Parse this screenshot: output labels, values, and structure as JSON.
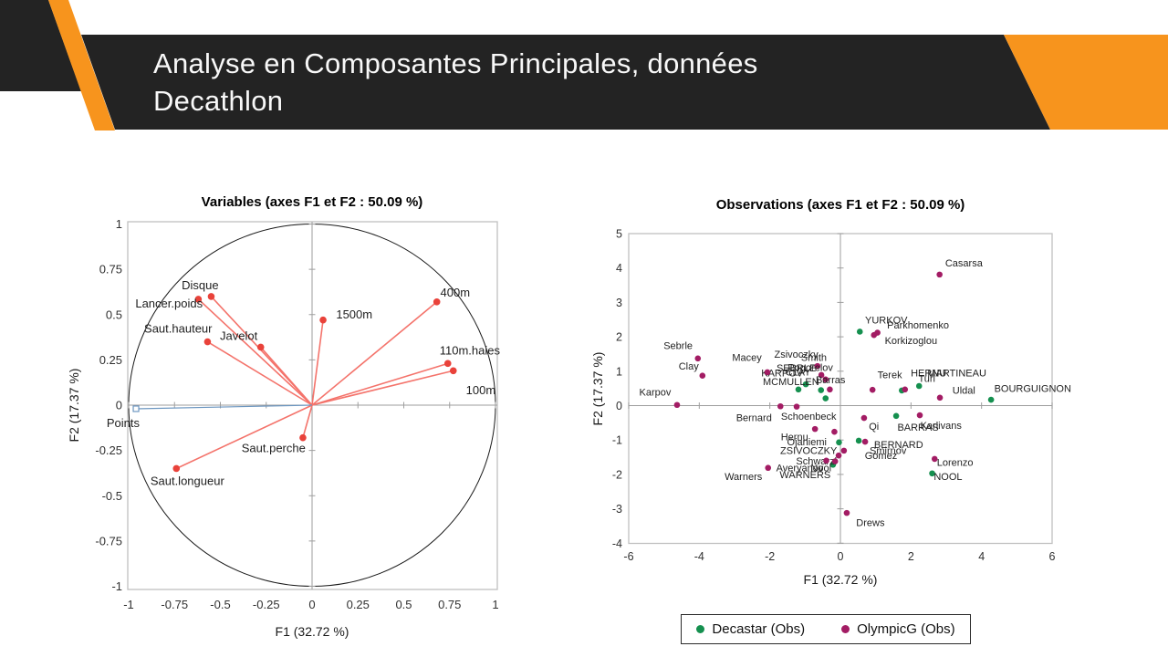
{
  "slide": {
    "title_line1": "Analyse en Composantes Principales, données",
    "title_line2": "Decathlon"
  },
  "colors": {
    "banner_dark": "#232323",
    "accent_orange": "#F7941D",
    "title_text": "#F8F8F8",
    "plot_border": "#C0C0C0",
    "axis_gray": "#9E9E9E",
    "circle_black": "#1A1A1A",
    "vector_red_line": "#F4736B",
    "vector_red_dot": "#E9423A",
    "vector_blue": "#6C96C0",
    "decastar_green": "#15904F",
    "olympic_magenta": "#A31C64"
  },
  "chart_data": [
    {
      "type": "scatter",
      "subtype": "pca-correlation-circle",
      "title": "Variables (axes F1 et F2 : 50.09 %)",
      "xlabel": "F1 (32.72 %)",
      "ylabel": "F2 (17.37 %)",
      "xlim": [
        -1,
        1
      ],
      "ylim": [
        -1,
        1
      ],
      "unit_circle": true,
      "grid": false,
      "xticks": [
        {
          "v": -1,
          "t": "-1"
        },
        {
          "v": -0.75,
          "t": "-0.75"
        },
        {
          "v": -0.5,
          "t": "-0.5"
        },
        {
          "v": -0.25,
          "t": "-0.25"
        },
        {
          "v": 0,
          "t": "0"
        },
        {
          "v": 0.25,
          "t": "0.25"
        },
        {
          "v": 0.5,
          "t": "0.5"
        },
        {
          "v": 0.75,
          "t": "0.75"
        },
        {
          "v": 1,
          "t": "1"
        }
      ],
      "yticks": [
        {
          "v": 1,
          "t": "1"
        },
        {
          "v": 0.75,
          "t": "0.75"
        },
        {
          "v": 0.5,
          "t": "0.5"
        },
        {
          "v": 0.25,
          "t": "0.25"
        },
        {
          "v": 0,
          "t": "0"
        },
        {
          "v": -0.25,
          "t": "-0.25"
        },
        {
          "v": -0.5,
          "t": "-0.5"
        },
        {
          "v": -0.75,
          "t": "-0.75"
        },
        {
          "v": -1,
          "t": "-1"
        }
      ],
      "vectors": [
        {
          "label": "Disque",
          "x": -0.55,
          "y": 0.6,
          "lx": -0.61,
          "ly": 0.66,
          "color": "red"
        },
        {
          "label": "Lancer.poids",
          "x": -0.62,
          "y": 0.585,
          "lx": -0.78,
          "ly": 0.56,
          "color": "red"
        },
        {
          "label": "Saut.hauteur",
          "x": -0.57,
          "y": 0.35,
          "lx": -0.73,
          "ly": 0.42,
          "color": "red"
        },
        {
          "label": "Javelot",
          "x": -0.28,
          "y": 0.32,
          "lx": -0.4,
          "ly": 0.38,
          "color": "red"
        },
        {
          "label": "1500m",
          "x": 0.06,
          "y": 0.47,
          "lx": 0.23,
          "ly": 0.5,
          "color": "red"
        },
        {
          "label": "400m",
          "x": 0.68,
          "y": 0.57,
          "lx": 0.78,
          "ly": 0.62,
          "color": "red"
        },
        {
          "label": "110m.haies",
          "x": 0.74,
          "y": 0.23,
          "lx": 0.86,
          "ly": 0.3,
          "color": "red"
        },
        {
          "label": "100m",
          "x": 0.77,
          "y": 0.19,
          "lx": 0.92,
          "ly": 0.08,
          "color": "red"
        },
        {
          "label": "Saut.perche",
          "x": -0.05,
          "y": -0.18,
          "lx": -0.21,
          "ly": -0.24,
          "color": "red"
        },
        {
          "label": "Saut.longueur",
          "x": -0.74,
          "y": -0.35,
          "lx": -0.68,
          "ly": -0.42,
          "color": "red"
        },
        {
          "label": "Points",
          "x": -0.96,
          "y": -0.02,
          "lx": -1.03,
          "ly": -0.1,
          "color": "blue",
          "marker": "square"
        }
      ]
    },
    {
      "type": "scatter",
      "subtype": "pca-individuals",
      "title": "Observations (axes F1 et F2 : 50.09 %)",
      "xlabel": "F1 (32.72 %)",
      "ylabel": "F2 (17.37 %)",
      "xlim": [
        -6,
        6
      ],
      "ylim": [
        -4,
        5
      ],
      "grid": false,
      "legend_position": "bottom",
      "xticks": [
        {
          "v": -6,
          "t": "-6"
        },
        {
          "v": -4,
          "t": "-4"
        },
        {
          "v": -2,
          "t": "-2"
        },
        {
          "v": 0,
          "t": "0"
        },
        {
          "v": 2,
          "t": "2"
        },
        {
          "v": 4,
          "t": "4"
        },
        {
          "v": 6,
          "t": "6"
        }
      ],
      "yticks": [
        {
          "v": 5,
          "t": "5"
        },
        {
          "v": 4,
          "t": "4"
        },
        {
          "v": 3,
          "t": "3"
        },
        {
          "v": 2,
          "t": "2"
        },
        {
          "v": 1,
          "t": "1"
        },
        {
          "v": 0,
          "t": "0"
        },
        {
          "v": -1,
          "t": "-1"
        },
        {
          "v": -2,
          "t": "-2"
        },
        {
          "v": -3,
          "t": "-3"
        },
        {
          "v": -4,
          "t": "-4"
        }
      ],
      "series": [
        {
          "name": "Decastar (Obs)",
          "color": "#15904F",
          "points": [
            {
              "n": "YURKOV",
              "x": 0.55,
              "y": 2.15,
              "lx": 1.3,
              "ly": 2.5
            },
            {
              "n": "SEBRLE",
              "x": -0.98,
              "y": 0.62,
              "lx": -1.25,
              "ly": 1.1
            },
            {
              "n": "KARPOV",
              "x": -1.19,
              "y": 0.47,
              "lx": -1.65,
              "ly": 0.95
            },
            {
              "n": "CLAY",
              "x": -0.55,
              "y": 0.45,
              "lx": -1.2,
              "ly": 0.98
            },
            {
              "n": "MCMULLEN",
              "x": -0.42,
              "y": 0.21,
              "lx": -1.4,
              "ly": 0.7
            },
            {
              "n": "MARTINEAU",
              "x": 1.74,
              "y": 0.44,
              "lx": 3.3,
              "ly": 0.95
            },
            {
              "n": "HERNU",
              "x": 2.23,
              "y": 0.57,
              "lx": 2.5,
              "ly": 0.95
            },
            {
              "n": "BOURGUIGNON",
              "x": 4.27,
              "y": 0.17,
              "lx": 5.45,
              "ly": 0.5
            },
            {
              "n": "BARRAS",
              "x": 1.58,
              "y": -0.3,
              "lx": 2.2,
              "ly": -0.62
            },
            {
              "n": "BERNARD",
              "x": 0.52,
              "y": -1.02,
              "lx": 1.65,
              "ly": -1.13
            },
            {
              "n": "ZSIVOCZKY",
              "x": -0.04,
              "y": -1.07,
              "lx": -0.9,
              "ly": -1.3
            },
            {
              "n": "WARNERS",
              "x": -0.21,
              "y": -1.72,
              "lx": -1.0,
              "ly": -2.0
            },
            {
              "n": "NOOL",
              "x": 2.6,
              "y": -1.97,
              "lx": 3.05,
              "ly": -2.05
            }
          ]
        },
        {
          "name": "OlympicG (Obs)",
          "color": "#A31C64",
          "points": [
            {
              "n": "Casarsa",
              "x": 2.81,
              "y": 3.81,
              "lx": 3.5,
              "ly": 4.15
            },
            {
              "n": "Parkhomenko",
              "x": 1.05,
              "y": 2.12,
              "lx": 2.2,
              "ly": 2.35
            },
            {
              "n": "Korkizoglou",
              "x": 0.95,
              "y": 2.05,
              "lx": 2.0,
              "ly": 1.9
            },
            {
              "n": "Sebrle",
              "x": -4.04,
              "y": 1.37,
              "lx": -4.6,
              "ly": 1.75
            },
            {
              "n": "Clay",
              "x": -3.91,
              "y": 0.87,
              "lx": -4.3,
              "ly": 1.15
            },
            {
              "n": "Karpov",
              "x": -4.63,
              "y": 0.02,
              "lx": -5.25,
              "ly": 0.4
            },
            {
              "n": "Macey",
              "x": -2.07,
              "y": 0.97,
              "lx": -2.65,
              "ly": 1.4
            },
            {
              "n": "Zsivoczky",
              "x": -0.65,
              "y": 1.15,
              "lx": -1.25,
              "ly": 1.5
            },
            {
              "n": "Smith",
              "x": -0.54,
              "y": 0.89,
              "lx": -0.75,
              "ly": 1.4
            },
            {
              "n": "Pogorelov",
              "x": -0.42,
              "y": 0.76,
              "lx": -0.85,
              "ly": 1.12
            },
            {
              "n": "Barras",
              "x": -0.3,
              "y": 0.47,
              "lx": -0.28,
              "ly": 0.75
            },
            {
              "n": "Terek",
              "x": 0.91,
              "y": 0.46,
              "lx": 1.4,
              "ly": 0.9
            },
            {
              "n": "Turi",
              "x": 1.83,
              "y": 0.47,
              "lx": 2.45,
              "ly": 0.8
            },
            {
              "n": "Uldal",
              "x": 2.82,
              "y": 0.23,
              "lx": 3.5,
              "ly": 0.45
            },
            {
              "n": "Bernard",
              "x": -1.7,
              "y": -0.02,
              "lx": -2.45,
              "ly": -0.35
            },
            {
              "n": "Schoenbeck",
              "x": -1.24,
              "y": -0.03,
              "lx": -0.9,
              "ly": -0.3
            },
            {
              "n": "Qi",
              "x": 0.67,
              "y": -0.36,
              "lx": 0.95,
              "ly": -0.6
            },
            {
              "n": "Karlivans",
              "x": 2.25,
              "y": -0.28,
              "lx": 2.85,
              "ly": -0.57
            },
            {
              "n": "Hernu",
              "x": -0.72,
              "y": -0.68,
              "lx": -1.3,
              "ly": -0.9
            },
            {
              "n": "Ojaniemi",
              "x": -0.17,
              "y": -0.76,
              "lx": -0.95,
              "ly": -1.05
            },
            {
              "n": "Smirnov",
              "x": 0.7,
              "y": -1.05,
              "lx": 1.35,
              "ly": -1.3
            },
            {
              "n": "Gomez",
              "x": 0.1,
              "y": -1.31,
              "lx": 1.15,
              "ly": -1.45
            },
            {
              "n": "Schwarzl",
              "x": -0.05,
              "y": -1.45,
              "lx": -0.68,
              "ly": -1.6
            },
            {
              "n": "Averyanov",
              "x": -0.4,
              "y": -1.6,
              "lx": -1.15,
              "ly": -1.8
            },
            {
              "n": "Nool",
              "x": -0.15,
              "y": -1.62,
              "lx": -0.55,
              "ly": -1.8
            },
            {
              "n": "Warners",
              "x": -2.05,
              "y": -1.81,
              "lx": -2.75,
              "ly": -2.05
            },
            {
              "n": "Lorenzo",
              "x": 2.67,
              "y": -1.55,
              "lx": 3.25,
              "ly": -1.65
            },
            {
              "n": "Drews",
              "x": 0.18,
              "y": -3.12,
              "lx": 0.85,
              "ly": -3.4
            }
          ]
        }
      ]
    }
  ],
  "legend": {
    "items": [
      {
        "label": "Decastar (Obs)",
        "color": "#15904F"
      },
      {
        "label": "OlympicG (Obs)",
        "color": "#A31C64"
      }
    ]
  }
}
